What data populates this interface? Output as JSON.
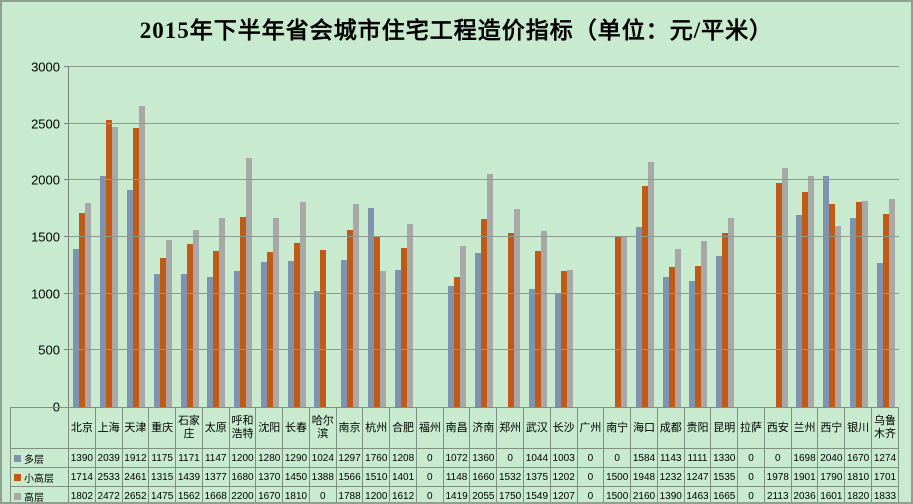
{
  "window": {
    "background_color": "#c8ebd0",
    "border_color": "#8f9f91"
  },
  "chart_data": {
    "type": "bar",
    "title": "2015年下半年省会城市住宅工程造价指标（单位：元/平米）",
    "xlabel": "",
    "ylabel": "",
    "ylim": [
      0,
      3000
    ],
    "yticks": [
      0,
      500,
      1000,
      1500,
      2000,
      2500,
      3000
    ],
    "grid": true,
    "legend_position": "table-left",
    "categories": [
      "北京",
      "上海",
      "天津",
      "重庆",
      "石家庄",
      "太原",
      "呼和浩特",
      "沈阳",
      "长春",
      "哈尔滨",
      "南京",
      "杭州",
      "合肥",
      "福州",
      "南昌",
      "济南",
      "郑州",
      "武汉",
      "长沙",
      "广州",
      "南宁",
      "海口",
      "成都",
      "贵阳",
      "昆明",
      "拉萨",
      "西安",
      "兰州",
      "西宁",
      "银川",
      "乌鲁木齐"
    ],
    "series": [
      {
        "name": "多层",
        "color": "#7f93ae",
        "values": [
          1390,
          2039,
          1912,
          1175,
          1171,
          1147,
          1200,
          1280,
          1290,
          1024,
          1297,
          1760,
          1208,
          0,
          1072,
          1360,
          0,
          1044,
          1003,
          0,
          0,
          1584,
          1143,
          1111,
          1330,
          0,
          0,
          1698,
          2040,
          1670,
          1274
        ]
      },
      {
        "name": "小高层",
        "color": "#c05a14",
        "values": [
          1714,
          2533,
          2461,
          1315,
          1439,
          1377,
          1680,
          1370,
          1450,
          1388,
          1566,
          1510,
          1401,
          0,
          1148,
          1660,
          1532,
          1375,
          1202,
          0,
          1500,
          1948,
          1232,
          1247,
          1535,
          0,
          1978,
          1901,
          1790,
          1810,
          1701
        ]
      },
      {
        "name": "高层",
        "color": "#a8a8a8",
        "values": [
          1802,
          2472,
          2652,
          1475,
          1562,
          1668,
          2200,
          1670,
          1810,
          0,
          1788,
          1200,
          1612,
          0,
          1419,
          2055,
          1750,
          1549,
          1207,
          0,
          1500,
          2160,
          1390,
          1463,
          1665,
          0,
          2113,
          2036,
          1601,
          1820,
          1833
        ]
      }
    ],
    "colors": {
      "grid_line": "#8c998e",
      "axis_line": "#7f7f7f",
      "table_border": "#7f8f81",
      "text": "#000000"
    }
  }
}
